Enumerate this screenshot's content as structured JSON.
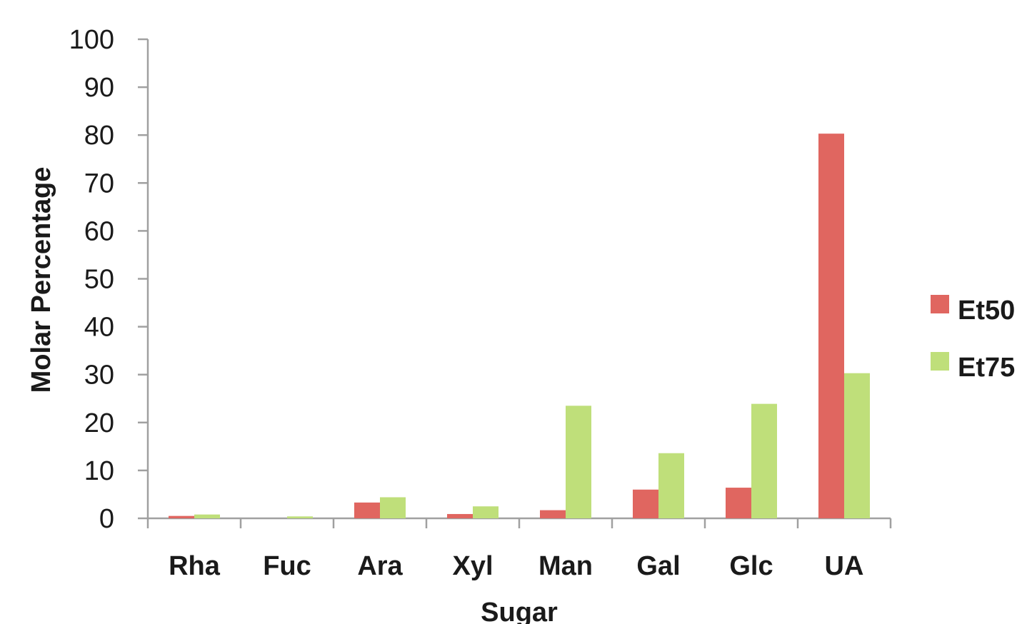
{
  "chart_data": {
    "type": "bar",
    "xlabel": "Sugar",
    "ylabel": "Molar Percentage",
    "ylim": [
      0,
      100
    ],
    "yticks": [
      0,
      10,
      20,
      30,
      40,
      50,
      60,
      70,
      80,
      90,
      100
    ],
    "categories": [
      "Rha",
      "Fuc",
      "Ara",
      "Xyl",
      "Man",
      "Gal",
      "Glc",
      "UA"
    ],
    "series": [
      {
        "name": "Et50",
        "color": "#e06660",
        "values": [
          0.5,
          0,
          3.3,
          0.9,
          1.7,
          6.0,
          6.4,
          80.3
        ]
      },
      {
        "name": "Et75",
        "color": "#bfdf7a",
        "values": [
          0.8,
          0.4,
          4.4,
          2.5,
          23.5,
          13.6,
          23.9,
          30.3
        ]
      }
    ],
    "legend_position": "right",
    "grid": false
  }
}
